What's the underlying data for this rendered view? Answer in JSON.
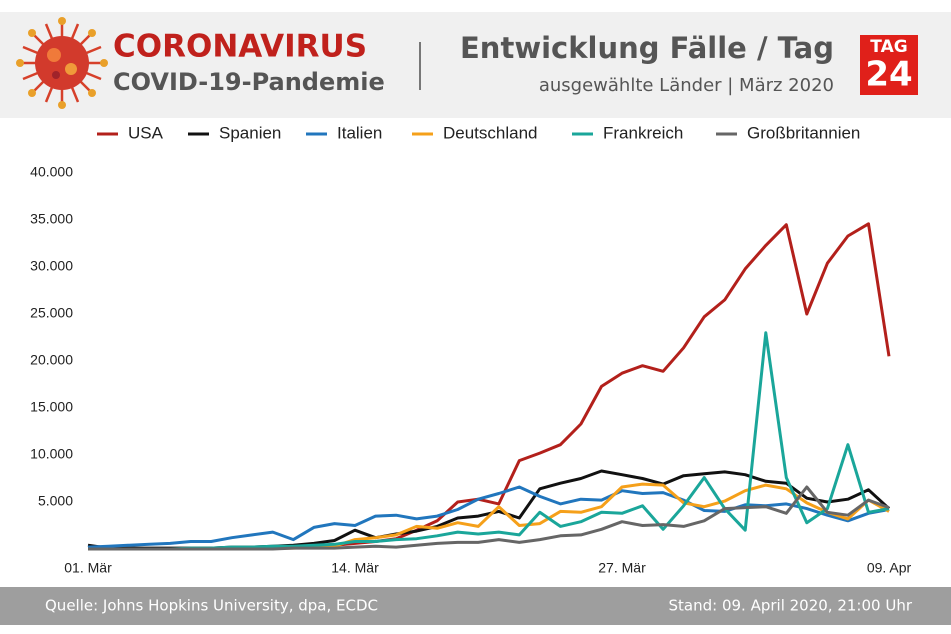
{
  "header": {
    "brand": "CORONAVIRUS",
    "brand_subtitle": "COVID-19-Pandemie",
    "logo_top": "TAG",
    "logo_bottom": "24"
  },
  "footer": {
    "source": "Quelle: Johns Hopkins University, dpa, ECDC",
    "stand": "Stand: 09. April 2020, 21:00 Uhr"
  },
  "chart_data": {
    "type": "line",
    "title": "Entwicklung Fälle / Tag",
    "subtitle": "ausgewählte Länder | März 2020",
    "categories": [
      "01. Mär",
      null,
      null,
      null,
      null,
      null,
      null,
      null,
      null,
      null,
      null,
      null,
      null,
      "14. Mär",
      null,
      null,
      null,
      null,
      null,
      null,
      null,
      null,
      null,
      null,
      null,
      null,
      "27. Mär",
      null,
      null,
      null,
      null,
      null,
      null,
      null,
      null,
      null,
      null,
      null,
      null,
      "09. Apr"
    ],
    "ylim": [
      0,
      40000
    ],
    "yticks": [
      {
        "value": 5000,
        "label": "5.000"
      },
      {
        "value": 10000,
        "label": "10.000"
      },
      {
        "value": 15000,
        "label": "15.000"
      },
      {
        "value": 20000,
        "label": "20.000"
      },
      {
        "value": 25000,
        "label": "25.000"
      },
      {
        "value": 30000,
        "label": "30.000"
      },
      {
        "value": 35000,
        "label": "35.000"
      },
      {
        "value": 40000,
        "label": "40.000"
      }
    ],
    "grid": false,
    "legend": "top",
    "series": [
      {
        "name": "USA",
        "color": "#b3201b",
        "values": [
          5,
          10,
          15,
          20,
          30,
          60,
          80,
          100,
          120,
          150,
          200,
          300,
          400,
          600,
          800,
          1100,
          2000,
          3000,
          5000,
          5300,
          4800,
          9400,
          10200,
          11100,
          13300,
          17300,
          18700,
          19500,
          18900,
          21400,
          24700,
          26500,
          29800,
          32300,
          34500,
          25000,
          30400,
          33300,
          34600,
          20500
        ]
      },
      {
        "name": "Spanien",
        "color": "#111111",
        "values": [
          400,
          100,
          100,
          100,
          100,
          100,
          100,
          200,
          200,
          300,
          400,
          600,
          900,
          2000,
          1200,
          1600,
          1900,
          2400,
          3300,
          3500,
          4000,
          3300,
          6400,
          7000,
          7500,
          8300,
          7900,
          7500,
          6900,
          7800,
          8000,
          8200,
          7900,
          7200,
          7000,
          5400,
          5000,
          5300,
          6300,
          4300
        ]
      },
      {
        "name": "Italien",
        "color": "#2176bd",
        "values": [
          200,
          300,
          400,
          500,
          600,
          800,
          800,
          1200,
          1500,
          1800,
          1000,
          2300,
          2700,
          2500,
          3500,
          3600,
          3200,
          3500,
          4200,
          5300,
          5900,
          6600,
          5600,
          4800,
          5300,
          5200,
          6200,
          5900,
          6000,
          5200,
          4100,
          4000,
          4700,
          4600,
          4800,
          4300,
          3600,
          3000,
          3800,
          4200
        ]
      },
      {
        "name": "Deutschland",
        "color": "#f5a01a",
        "values": [
          0,
          0,
          0,
          0,
          0,
          0,
          0,
          0,
          0,
          100,
          100,
          200,
          300,
          1000,
          1200,
          1500,
          2400,
          2200,
          2800,
          2400,
          4500,
          2500,
          2700,
          4000,
          3900,
          4500,
          6600,
          6900,
          6800,
          4900,
          4500,
          5100,
          6200,
          6800,
          6400,
          4900,
          3900,
          3200,
          5200,
          4000
        ]
      },
      {
        "name": "Frankreich",
        "color": "#1aa69a",
        "values": [
          0,
          0,
          0,
          0,
          0,
          100,
          100,
          200,
          200,
          300,
          300,
          400,
          500,
          800,
          800,
          1000,
          1100,
          1400,
          1800,
          1600,
          1800,
          1500,
          3900,
          2400,
          2900,
          3900,
          3800,
          4600,
          2100,
          4600,
          7600,
          4300,
          2000,
          23000,
          7600,
          2800,
          4300,
          11100,
          3900,
          4300
        ]
      },
      {
        "name": "Großbritannien",
        "color": "#666666",
        "values": [
          0,
          0,
          0,
          0,
          0,
          0,
          0,
          0,
          0,
          0,
          100,
          100,
          100,
          200,
          300,
          200,
          400,
          600,
          700,
          700,
          1000,
          700,
          1000,
          1400,
          1500,
          2100,
          2900,
          2500,
          2600,
          2400,
          3000,
          4300,
          4400,
          4500,
          3800,
          6600,
          3900,
          3600,
          5200,
          4400
        ]
      }
    ]
  }
}
